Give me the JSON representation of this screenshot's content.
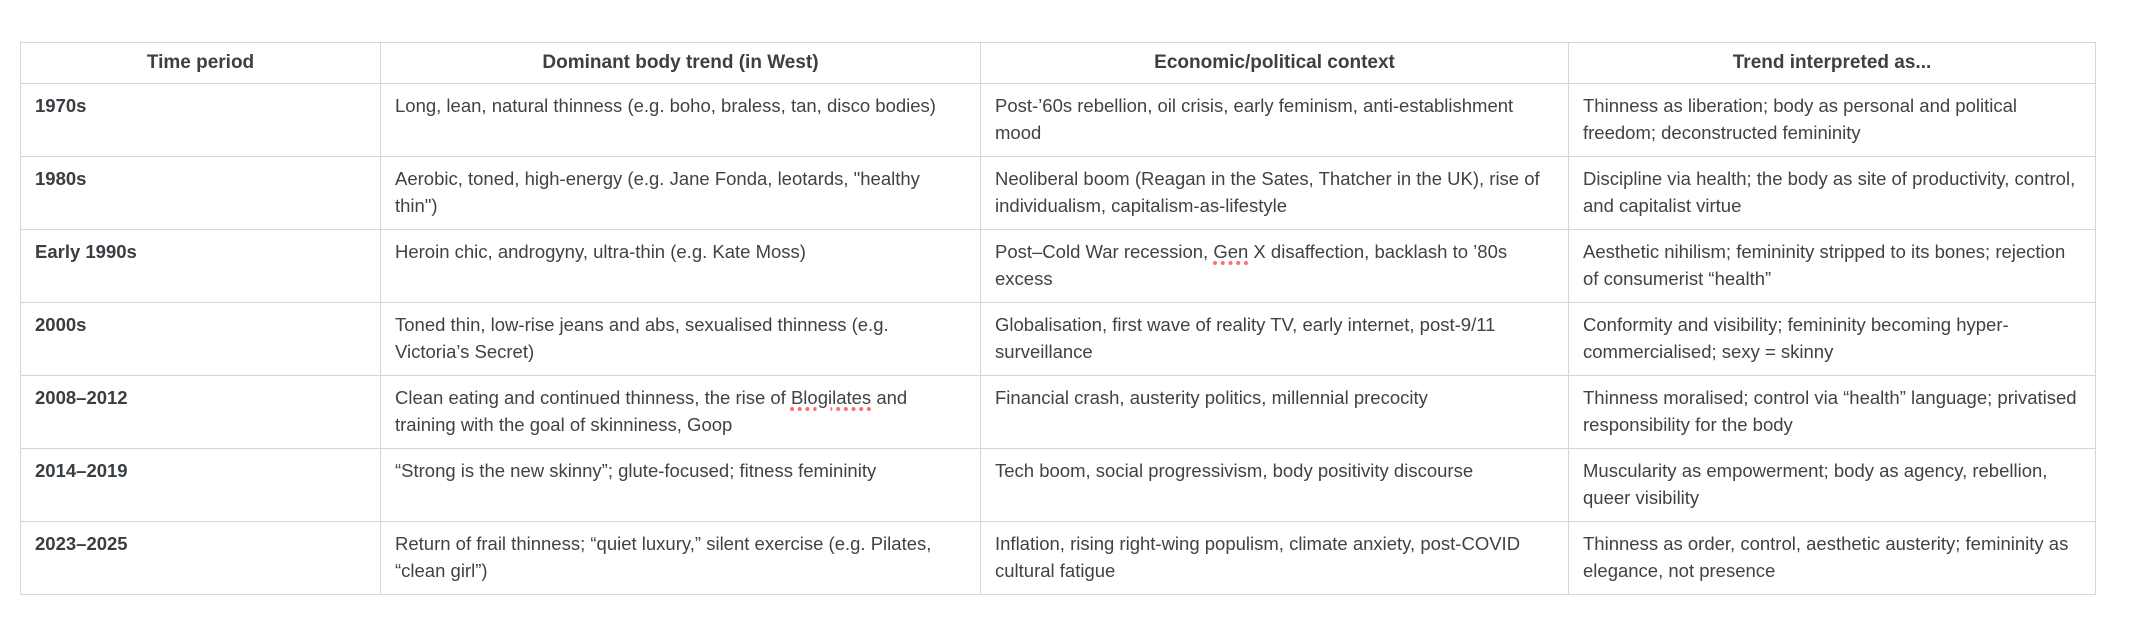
{
  "table": {
    "columns": [
      "Time period",
      "Dominant body trend (in West)",
      "Economic/political context",
      "Trend interpreted as..."
    ],
    "rows": [
      {
        "period": "1970s",
        "trend": "Long, lean, natural thinness (e.g. boho, braless, tan, disco bodies)",
        "context": "Post-’60s rebellion, oil crisis, early feminism, anti-establishment mood",
        "interpretation": "Thinness as liberation; body as personal and political freedom; deconstructed femininity"
      },
      {
        "period": "1980s",
        "trend": "Aerobic, toned, high-energy (e.g. Jane Fonda, leotards, \"healthy thin\")",
        "context": "Neoliberal boom (Reagan in the Sates, Thatcher in the UK), rise of individualism, capitalism-as-lifestyle",
        "interpretation": "Discipline via health; the body as site of productivity, control, and capitalist virtue"
      },
      {
        "period": "Early 1990s",
        "trend": "Heroin chic, androgyny, ultra-thin (e.g. Kate Moss)",
        "context": "Post–Cold War recession, Gen X disaffection, backlash to ’80s excess",
        "interpretation": "Aesthetic nihilism; femininity stripped to its bones; rejection of consumerist “health”"
      },
      {
        "period": "2000s",
        "trend": "Toned thin, low-rise jeans and abs, sexualised thinness (e.g. Victoria’s Secret)",
        "context": "Globalisation, first wave of reality TV, early internet, post-9/11 surveillance",
        "interpretation": "Conformity and visibility; femininity becoming hyper-commercialised; sexy = skinny"
      },
      {
        "period": "2008–2012",
        "trend": "Clean eating and continued thinness, the rise of Blogilates and training with the goal of skinniness, Goop",
        "context": "Financial crash, austerity politics, millennial precocity",
        "interpretation": "Thinness moralised; control via “health” language; privatised responsibility for the body"
      },
      {
        "period": "2014–2019",
        "trend": "“Strong is the new skinny”; glute-focused; fitness femininity",
        "context": "Tech boom, social progressivism, body positivity discourse",
        "interpretation": "Muscularity as empowerment; body as agency, rebellion, queer visibility"
      },
      {
        "period": "2023–2025",
        "trend": "Return of frail thinness; “quiet luxury,” silent exercise (e.g. Pilates, “clean girl”)",
        "context": "Inflation, rising right-wing populism, climate anxiety, post-COVID cultural fatigue",
        "interpretation": "Thinness as order, control, aesthetic austerity; femininity as elegance, not presence"
      }
    ]
  },
  "spellcheck": {
    "underline_color": "#ff7066",
    "words": [
      "Gen",
      "Blogilates"
    ]
  },
  "colors": {
    "text": "#3e4347",
    "header_text": "#3b4045",
    "border": "#d6d6d6",
    "background": "#ffffff"
  }
}
